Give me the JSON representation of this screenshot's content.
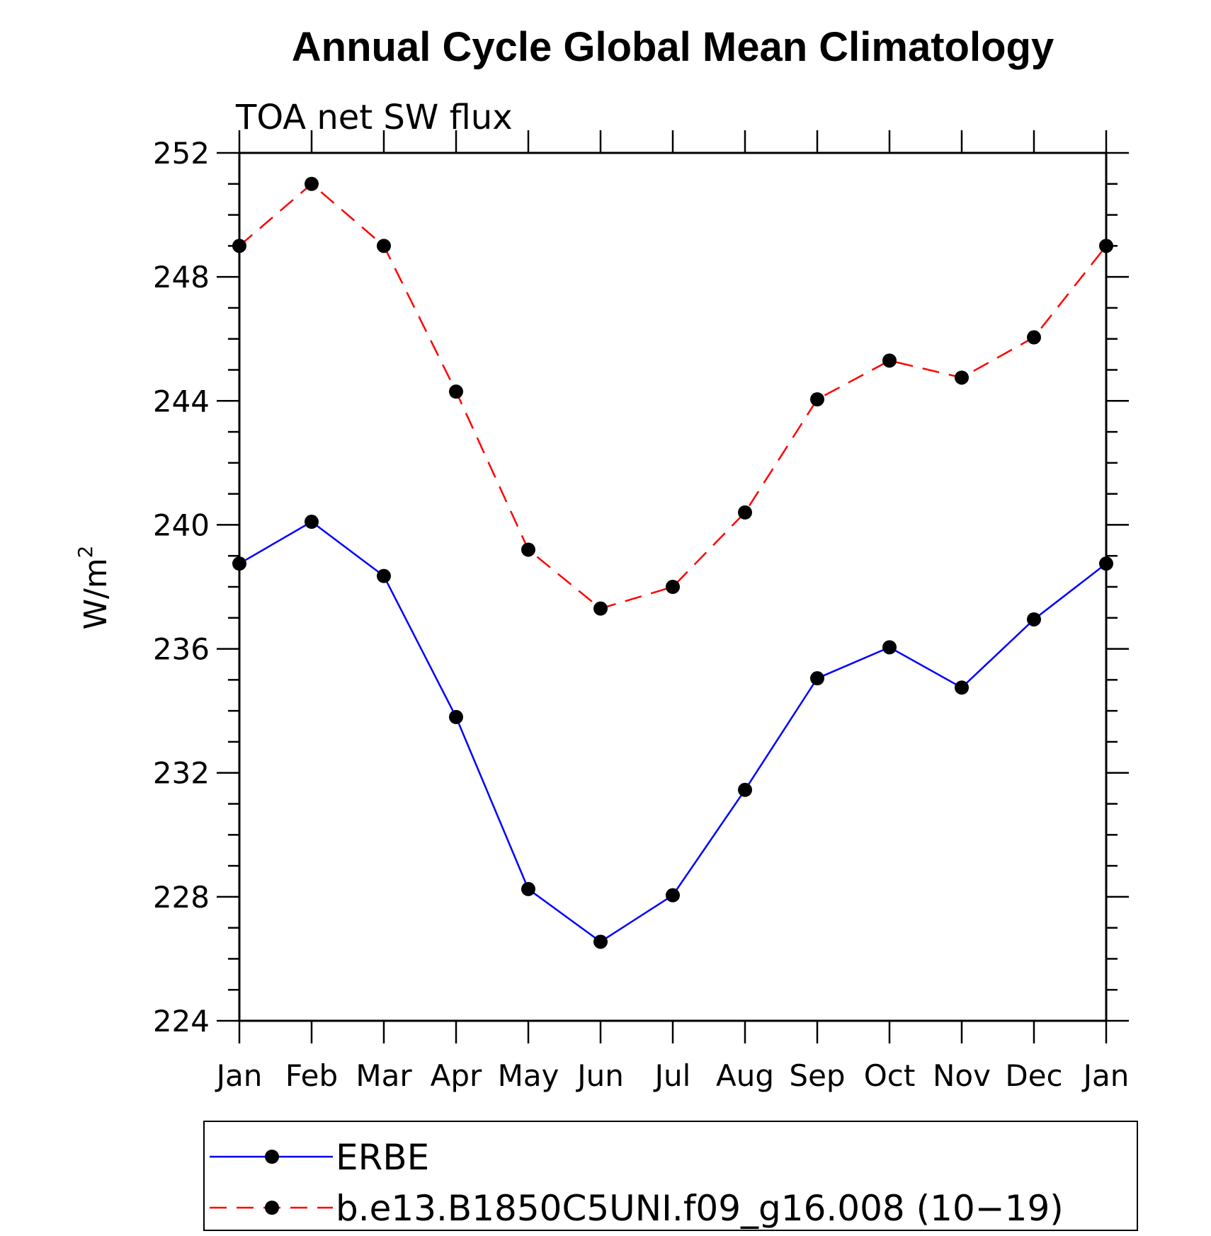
{
  "chart_data": {
    "type": "line",
    "title": "Annual Cycle Global Mean Climatology",
    "subtitle": "TOA net SW flux",
    "ylabel": "W/m",
    "ylabel_superscript": "2",
    "xlabel": "",
    "categories": [
      "Jan",
      "Feb",
      "Mar",
      "Apr",
      "May",
      "Jun",
      "Jul",
      "Aug",
      "Sep",
      "Oct",
      "Nov",
      "Dec",
      "Jan"
    ],
    "ylim": [
      224,
      252
    ],
    "yticks": [
      "224",
      "228",
      "232",
      "236",
      "240",
      "244",
      "248",
      "252"
    ],
    "grid": false,
    "legend_position": "bottom",
    "series": [
      {
        "name": "ERBE",
        "color": "#0000ff",
        "dash": "solid",
        "values": [
          238.75,
          240.1,
          238.35,
          233.8,
          228.25,
          226.55,
          228.05,
          231.45,
          235.05,
          236.05,
          234.75,
          236.95,
          238.75
        ]
      },
      {
        "name": "b.e13.B1850C5UNI.f09_g16.008 (10−19)",
        "color": "#ff0000",
        "dash": "dashed",
        "values": [
          249.0,
          251.0,
          249.0,
          244.3,
          239.2,
          237.3,
          238.0,
          240.4,
          244.05,
          245.3,
          244.75,
          246.05,
          249.0
        ]
      }
    ]
  }
}
